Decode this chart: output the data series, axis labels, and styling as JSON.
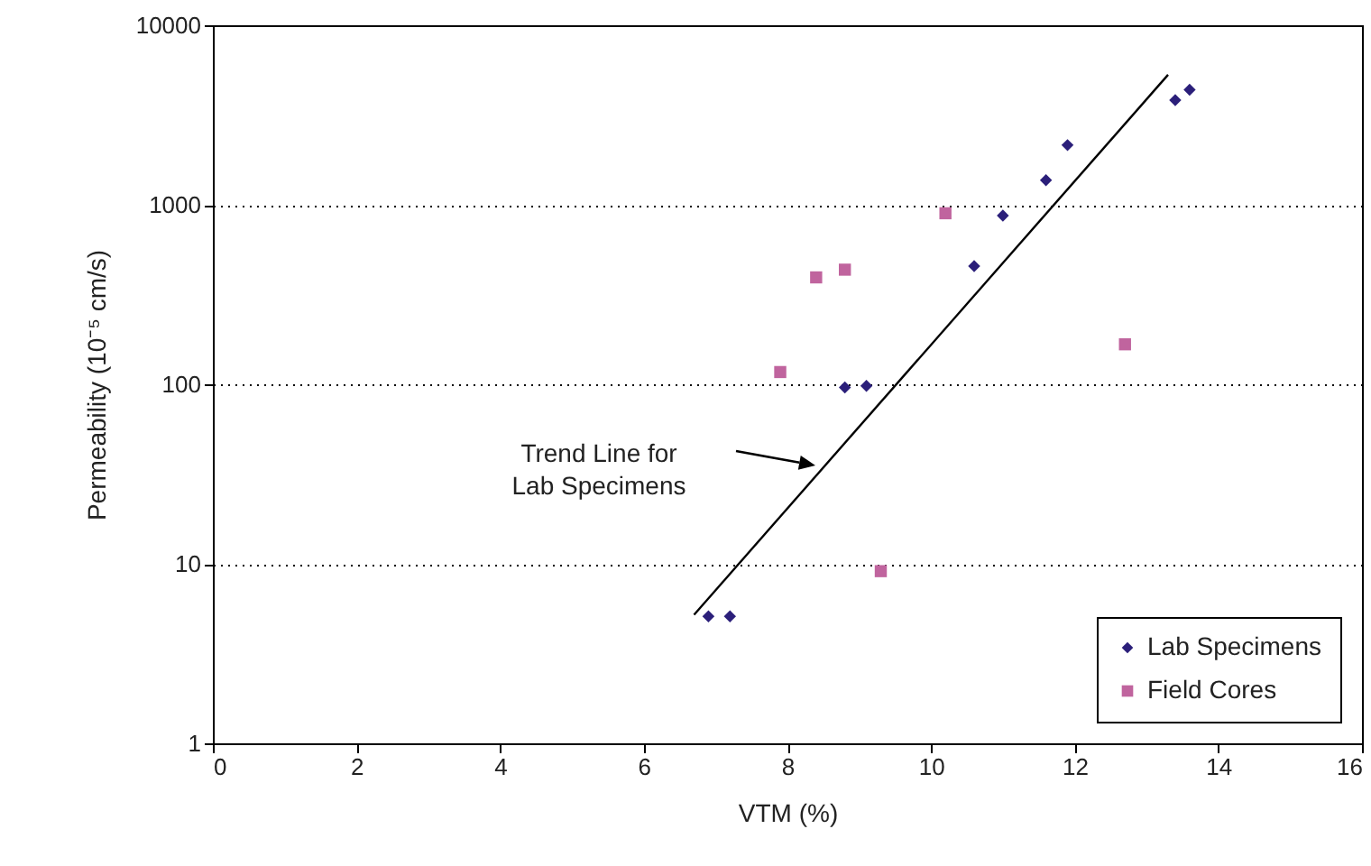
{
  "chart_data": {
    "type": "scatter",
    "xlabel": "VTM (%)",
    "ylabel": "Permeability (10⁻⁵ cm/s)",
    "log": "y",
    "grid": "y",
    "legend": "bottom right",
    "xlim": [
      0,
      16
    ],
    "xticks": [
      0,
      2,
      4,
      6,
      8,
      10,
      12,
      14,
      16
    ],
    "ylim": [
      1,
      10000
    ],
    "yticks": [
      1,
      10,
      100,
      1000,
      10000
    ],
    "series": [
      {
        "name": "Lab Specimens",
        "color": "#2b1f7a",
        "marker": "diamond",
        "x": [
          6.9,
          7.2,
          8.8,
          9.1,
          10.6,
          11.0,
          11.6,
          11.9,
          13.4,
          13.6
        ],
        "values": [
          5.1,
          5.1,
          96,
          98,
          455,
          870,
          1370,
          2150,
          3830,
          4370
        ]
      },
      {
        "name": "Field Cores",
        "color": "#c0649e",
        "marker": "square",
        "x": [
          7.9,
          8.4,
          8.8,
          9.3,
          10.2,
          12.7
        ],
        "values": [
          117,
          394,
          435,
          9.1,
          897,
          167
        ]
      },
      {
        "type": "line",
        "color": "#000000",
        "marker": "none",
        "x": [
          6.7,
          13.3
        ],
        "values": [
          5.2,
          5300
        ]
      }
    ],
    "annotations": [
      "Trend Line for\nLab Specimens"
    ]
  }
}
